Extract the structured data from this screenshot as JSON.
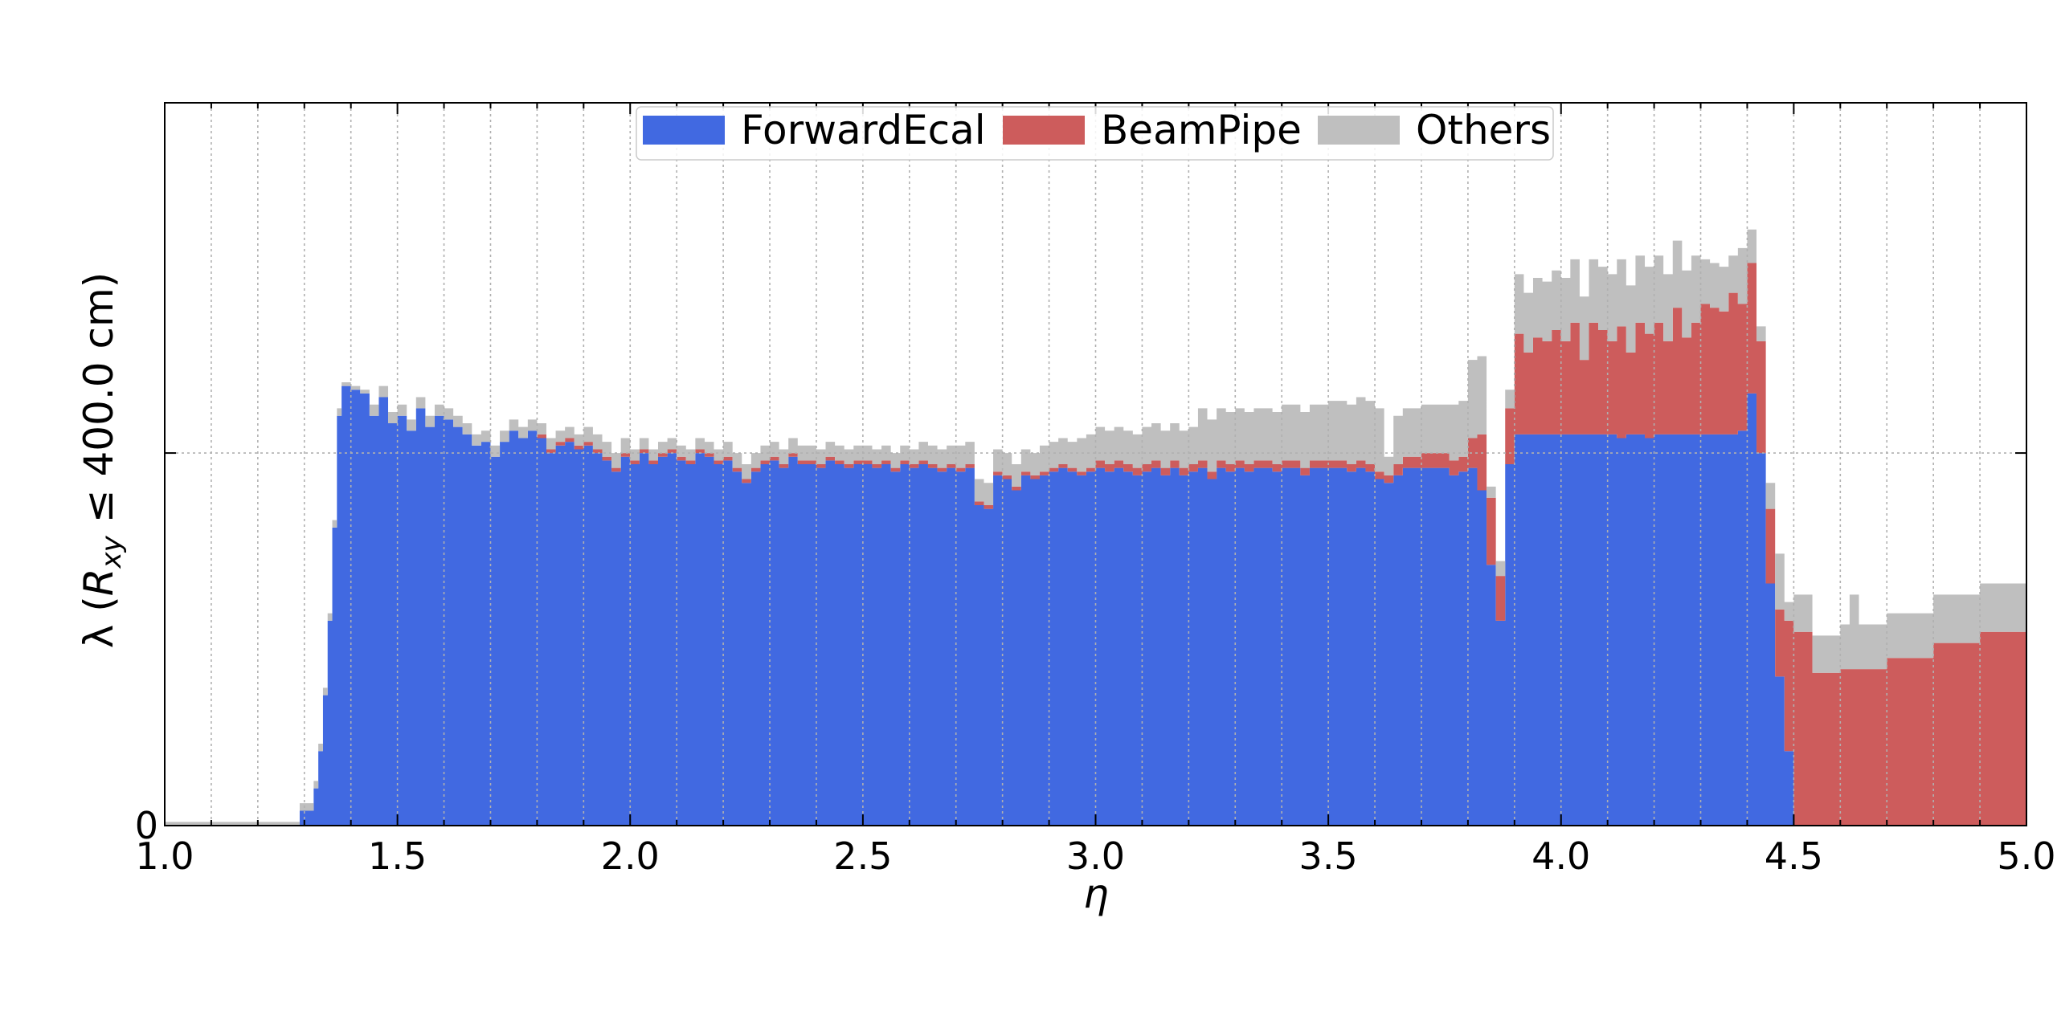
{
  "chart_data": {
    "type": "area",
    "stacked": true,
    "step": true,
    "xlabel": "η",
    "ylabel_main": "λ (",
    "ylabel_r": "R",
    "ylabel_sub": "xy",
    "ylabel_tail": " ≤ 400.0 cm)",
    "xlim": [
      1.0,
      5.0
    ],
    "ylim": [
      0,
      1.94
    ],
    "xticks": [
      "1.0",
      "1.5",
      "2.0",
      "2.5",
      "3.0",
      "3.5",
      "4.0",
      "4.5",
      "5.0"
    ],
    "yticks": [
      "0"
    ],
    "grid": true,
    "legend": {
      "position": "top-center",
      "entries": [
        {
          "name": "ForwardEcal",
          "color": "#4169e1"
        },
        {
          "name": "BeamPipe",
          "color": "#cd5c5c"
        },
        {
          "name": "Others",
          "color": "#bfbfbf"
        }
      ]
    },
    "series": [
      {
        "name": "ForwardEcal",
        "color": "#4169e1",
        "points": [
          [
            1.0,
            0.0
          ],
          [
            1.28,
            0.0
          ],
          [
            1.29,
            0.04
          ],
          [
            1.32,
            0.1
          ],
          [
            1.33,
            0.2
          ],
          [
            1.34,
            0.35
          ],
          [
            1.35,
            0.55
          ],
          [
            1.36,
            0.8
          ],
          [
            1.37,
            1.1
          ],
          [
            1.38,
            1.18
          ],
          [
            1.4,
            1.17
          ],
          [
            1.42,
            1.16
          ],
          [
            1.44,
            1.1
          ],
          [
            1.46,
            1.15
          ],
          [
            1.48,
            1.08
          ],
          [
            1.5,
            1.1
          ],
          [
            1.52,
            1.06
          ],
          [
            1.54,
            1.12
          ],
          [
            1.56,
            1.07
          ],
          [
            1.58,
            1.1
          ],
          [
            1.6,
            1.09
          ],
          [
            1.62,
            1.07
          ],
          [
            1.64,
            1.05
          ],
          [
            1.66,
            1.02
          ],
          [
            1.68,
            1.03
          ],
          [
            1.7,
            0.99
          ],
          [
            1.72,
            1.03
          ],
          [
            1.74,
            1.06
          ],
          [
            1.76,
            1.04
          ],
          [
            1.78,
            1.06
          ],
          [
            1.8,
            1.04
          ],
          [
            1.82,
            1.0
          ],
          [
            1.84,
            1.02
          ],
          [
            1.86,
            1.03
          ],
          [
            1.88,
            1.01
          ],
          [
            1.9,
            1.02
          ],
          [
            1.92,
            1.0
          ],
          [
            1.94,
            0.98
          ],
          [
            1.96,
            0.95
          ],
          [
            1.98,
            0.99
          ],
          [
            2.0,
            0.97
          ],
          [
            2.02,
            1.0
          ],
          [
            2.04,
            0.97
          ],
          [
            2.06,
            0.99
          ],
          [
            2.08,
            1.0
          ],
          [
            2.1,
            0.98
          ],
          [
            2.12,
            0.97
          ],
          [
            2.14,
            1.0
          ],
          [
            2.16,
            0.99
          ],
          [
            2.18,
            0.97
          ],
          [
            2.2,
            0.98
          ],
          [
            2.22,
            0.95
          ],
          [
            2.24,
            0.92
          ],
          [
            2.26,
            0.95
          ],
          [
            2.28,
            0.97
          ],
          [
            2.3,
            0.98
          ],
          [
            2.32,
            0.96
          ],
          [
            2.34,
            0.99
          ],
          [
            2.36,
            0.97
          ],
          [
            2.38,
            0.97
          ],
          [
            2.4,
            0.96
          ],
          [
            2.42,
            0.98
          ],
          [
            2.44,
            0.97
          ],
          [
            2.46,
            0.96
          ],
          [
            2.48,
            0.97
          ],
          [
            2.5,
            0.97
          ],
          [
            2.52,
            0.96
          ],
          [
            2.54,
            0.97
          ],
          [
            2.56,
            0.95
          ],
          [
            2.58,
            0.97
          ],
          [
            2.6,
            0.96
          ],
          [
            2.62,
            0.97
          ],
          [
            2.64,
            0.96
          ],
          [
            2.66,
            0.95
          ],
          [
            2.68,
            0.96
          ],
          [
            2.7,
            0.95
          ],
          [
            2.72,
            0.96
          ],
          [
            2.74,
            0.86
          ],
          [
            2.76,
            0.85
          ],
          [
            2.78,
            0.94
          ],
          [
            2.8,
            0.93
          ],
          [
            2.82,
            0.9
          ],
          [
            2.84,
            0.94
          ],
          [
            2.86,
            0.93
          ],
          [
            2.88,
            0.94
          ],
          [
            2.9,
            0.95
          ],
          [
            2.92,
            0.96
          ],
          [
            2.94,
            0.95
          ],
          [
            2.96,
            0.94
          ],
          [
            2.98,
            0.95
          ],
          [
            3.0,
            0.96
          ],
          [
            3.02,
            0.95
          ],
          [
            3.04,
            0.96
          ],
          [
            3.06,
            0.95
          ],
          [
            3.08,
            0.94
          ],
          [
            3.1,
            0.95
          ],
          [
            3.12,
            0.96
          ],
          [
            3.14,
            0.94
          ],
          [
            3.16,
            0.96
          ],
          [
            3.18,
            0.94
          ],
          [
            3.2,
            0.95
          ],
          [
            3.22,
            0.96
          ],
          [
            3.24,
            0.93
          ],
          [
            3.26,
            0.96
          ],
          [
            3.28,
            0.95
          ],
          [
            3.3,
            0.96
          ],
          [
            3.32,
            0.95
          ],
          [
            3.34,
            0.96
          ],
          [
            3.36,
            0.96
          ],
          [
            3.38,
            0.95
          ],
          [
            3.4,
            0.96
          ],
          [
            3.42,
            0.96
          ],
          [
            3.44,
            0.94
          ],
          [
            3.46,
            0.96
          ],
          [
            3.48,
            0.96
          ],
          [
            3.5,
            0.96
          ],
          [
            3.52,
            0.96
          ],
          [
            3.54,
            0.95
          ],
          [
            3.56,
            0.96
          ],
          [
            3.58,
            0.95
          ],
          [
            3.6,
            0.93
          ],
          [
            3.62,
            0.92
          ],
          [
            3.64,
            0.94
          ],
          [
            3.66,
            0.96
          ],
          [
            3.68,
            0.96
          ],
          [
            3.7,
            0.96
          ],
          [
            3.72,
            0.96
          ],
          [
            3.74,
            0.96
          ],
          [
            3.76,
            0.94
          ],
          [
            3.78,
            0.95
          ],
          [
            3.8,
            0.96
          ],
          [
            3.82,
            0.9
          ],
          [
            3.84,
            0.7
          ],
          [
            3.86,
            0.55
          ],
          [
            3.88,
            0.97
          ],
          [
            3.9,
            1.05
          ],
          [
            3.92,
            1.05
          ],
          [
            3.94,
            1.05
          ],
          [
            3.96,
            1.05
          ],
          [
            3.98,
            1.05
          ],
          [
            4.0,
            1.05
          ],
          [
            4.02,
            1.05
          ],
          [
            4.04,
            1.05
          ],
          [
            4.06,
            1.05
          ],
          [
            4.08,
            1.05
          ],
          [
            4.1,
            1.05
          ],
          [
            4.12,
            1.04
          ],
          [
            4.14,
            1.05
          ],
          [
            4.16,
            1.05
          ],
          [
            4.18,
            1.04
          ],
          [
            4.2,
            1.05
          ],
          [
            4.22,
            1.05
          ],
          [
            4.24,
            1.05
          ],
          [
            4.26,
            1.05
          ],
          [
            4.28,
            1.05
          ],
          [
            4.3,
            1.05
          ],
          [
            4.32,
            1.05
          ],
          [
            4.34,
            1.05
          ],
          [
            4.36,
            1.05
          ],
          [
            4.38,
            1.06
          ],
          [
            4.4,
            1.16
          ],
          [
            4.42,
            1.0
          ],
          [
            4.44,
            0.65
          ],
          [
            4.46,
            0.4
          ],
          [
            4.48,
            0.2
          ],
          [
            4.5,
            0.0
          ],
          [
            5.0,
            0.0
          ]
        ]
      },
      {
        "name": "BeamPipe",
        "color": "#cd5c5c",
        "points": [
          [
            1.0,
            0.0
          ],
          [
            1.28,
            0.0
          ],
          [
            1.36,
            0.0
          ],
          [
            1.8,
            0.01
          ],
          [
            2.2,
            0.01
          ],
          [
            2.6,
            0.01
          ],
          [
            2.9,
            0.01
          ],
          [
            3.0,
            0.02
          ],
          [
            3.4,
            0.02
          ],
          [
            3.64,
            0.03
          ],
          [
            3.7,
            0.04
          ],
          [
            3.8,
            0.08
          ],
          [
            3.82,
            0.15
          ],
          [
            3.84,
            0.18
          ],
          [
            3.86,
            0.12
          ],
          [
            3.88,
            0.15
          ],
          [
            3.9,
            0.27
          ],
          [
            3.92,
            0.22
          ],
          [
            3.94,
            0.26
          ],
          [
            3.96,
            0.25
          ],
          [
            3.98,
            0.28
          ],
          [
            4.0,
            0.25
          ],
          [
            4.02,
            0.3
          ],
          [
            4.04,
            0.2
          ],
          [
            4.06,
            0.3
          ],
          [
            4.08,
            0.28
          ],
          [
            4.1,
            0.25
          ],
          [
            4.12,
            0.3
          ],
          [
            4.14,
            0.22
          ],
          [
            4.16,
            0.3
          ],
          [
            4.18,
            0.28
          ],
          [
            4.2,
            0.3
          ],
          [
            4.22,
            0.25
          ],
          [
            4.24,
            0.34
          ],
          [
            4.26,
            0.26
          ],
          [
            4.28,
            0.3
          ],
          [
            4.3,
            0.35
          ],
          [
            4.32,
            0.34
          ],
          [
            4.34,
            0.33
          ],
          [
            4.36,
            0.38
          ],
          [
            4.38,
            0.34
          ],
          [
            4.4,
            0.35
          ],
          [
            4.42,
            0.3
          ],
          [
            4.44,
            0.2
          ],
          [
            4.46,
            0.18
          ],
          [
            4.48,
            0.35
          ],
          [
            4.5,
            0.52
          ],
          [
            4.54,
            0.41
          ],
          [
            4.6,
            0.42
          ],
          [
            4.7,
            0.45
          ],
          [
            4.8,
            0.49
          ],
          [
            4.9,
            0.52
          ],
          [
            5.0,
            0.57
          ]
        ]
      },
      {
        "name": "Others",
        "color": "#bfbfbf",
        "points": [
          [
            1.0,
            0.01
          ],
          [
            1.28,
            0.01
          ],
          [
            1.29,
            0.02
          ],
          [
            1.34,
            0.02
          ],
          [
            1.36,
            0.02
          ],
          [
            1.38,
            0.01
          ],
          [
            1.44,
            0.03
          ],
          [
            1.5,
            0.03
          ],
          [
            1.6,
            0.03
          ],
          [
            1.7,
            0.03
          ],
          [
            1.8,
            0.03
          ],
          [
            1.9,
            0.04
          ],
          [
            2.0,
            0.03
          ],
          [
            2.2,
            0.04
          ],
          [
            2.4,
            0.04
          ],
          [
            2.5,
            0.04
          ],
          [
            2.56,
            0.04
          ],
          [
            2.62,
            0.05
          ],
          [
            2.7,
            0.06
          ],
          [
            2.8,
            0.06
          ],
          [
            2.88,
            0.07
          ],
          [
            2.96,
            0.09
          ],
          [
            3.0,
            0.09
          ],
          [
            3.1,
            0.1
          ],
          [
            3.2,
            0.1
          ],
          [
            3.22,
            0.14
          ],
          [
            3.3,
            0.14
          ],
          [
            3.4,
            0.15
          ],
          [
            3.5,
            0.16
          ],
          [
            3.56,
            0.17
          ],
          [
            3.6,
            0.17
          ],
          [
            3.62,
            0.05
          ],
          [
            3.64,
            0.13
          ],
          [
            3.7,
            0.13
          ],
          [
            3.76,
            0.15
          ],
          [
            3.8,
            0.21
          ],
          [
            3.84,
            0.03
          ],
          [
            3.86,
            0.04
          ],
          [
            3.88,
            0.05
          ],
          [
            3.9,
            0.16
          ],
          [
            4.0,
            0.17
          ],
          [
            4.1,
            0.18
          ],
          [
            4.2,
            0.18
          ],
          [
            4.3,
            0.12
          ],
          [
            4.36,
            0.1
          ],
          [
            4.38,
            0.15
          ],
          [
            4.4,
            0.09
          ],
          [
            4.42,
            0.04
          ],
          [
            4.44,
            0.07
          ],
          [
            4.46,
            0.15
          ],
          [
            4.48,
            0.05
          ],
          [
            4.5,
            0.1
          ],
          [
            4.6,
            0.12
          ],
          [
            4.62,
            0.2
          ],
          [
            4.64,
            0.12
          ],
          [
            4.8,
            0.13
          ],
          [
            5.0,
            0.14
          ]
        ]
      }
    ]
  }
}
